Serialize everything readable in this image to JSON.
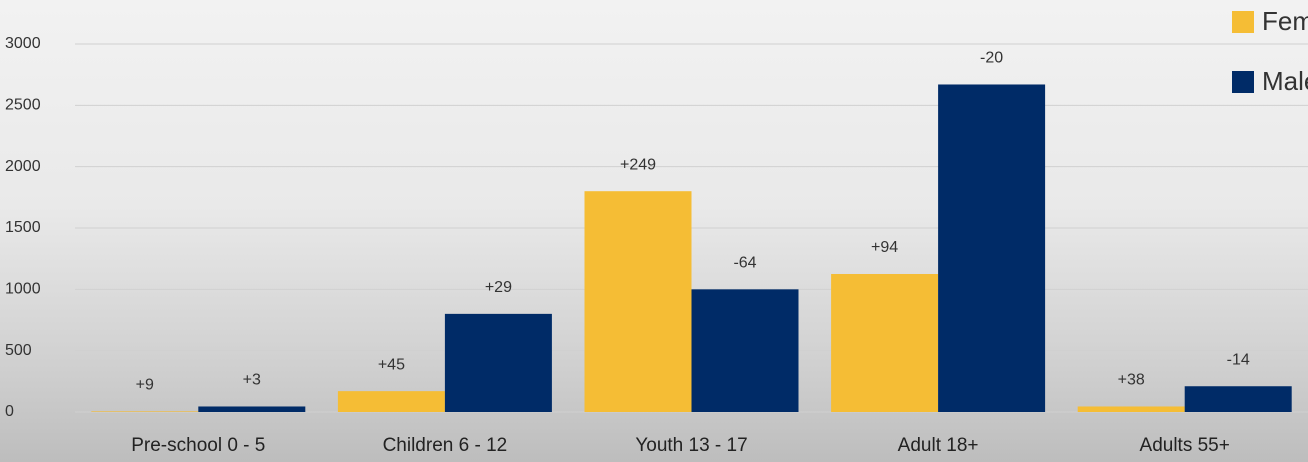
{
  "chart_data": {
    "type": "bar",
    "categories": [
      "Pre-school 0 - 5",
      "Children 6 - 12",
      "Youth 13 - 17",
      "Adult 18+",
      "Adults 55+"
    ],
    "series": [
      {
        "name": "Female",
        "color": "#f5bd35",
        "values": [
          5,
          170,
          1800,
          1125,
          45
        ],
        "labels": [
          "+9",
          "+45",
          "+249",
          "+94",
          "+38"
        ]
      },
      {
        "name": "Male",
        "color": "#002b67",
        "values": [
          45,
          800,
          1000,
          2670,
          210
        ],
        "labels": [
          "+3",
          "+29",
          "-64",
          "-20",
          "-14"
        ]
      }
    ],
    "ylim": [
      0,
      3000
    ],
    "yticks": [
      0,
      500,
      1000,
      1500,
      2000,
      2500,
      3000
    ],
    "grid": true,
    "legend": "top-right"
  }
}
